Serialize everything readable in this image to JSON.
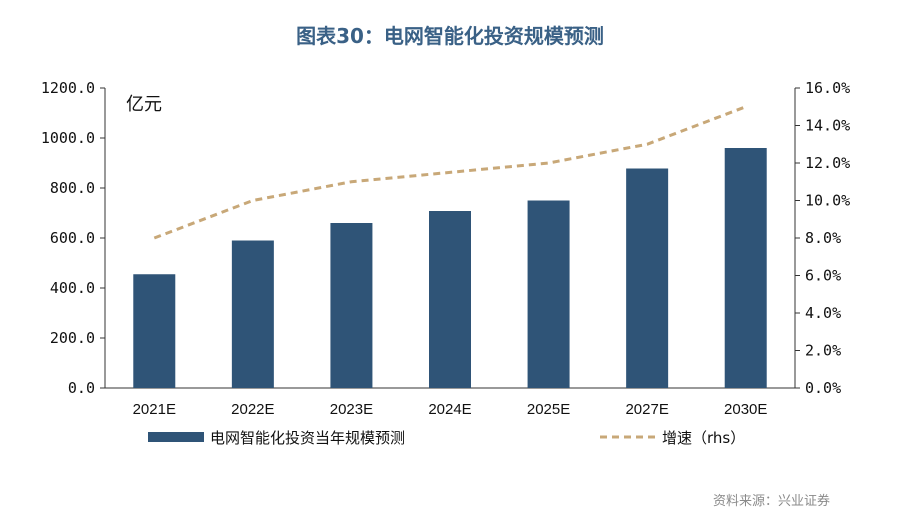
{
  "title": "图表30：电网智能化投资规模预测",
  "unit_label": "亿元",
  "source": "资料来源：兴业证券",
  "colors": {
    "bar": "#2f5477",
    "line": "#c8a878",
    "title": "#3a6186"
  },
  "chart_data": {
    "type": "bar",
    "categories": [
      "2021E",
      "2022E",
      "2023E",
      "2024E",
      "2025E",
      "2027E",
      "2030E"
    ],
    "series": [
      {
        "name": "电网智能化投资当年规模预测",
        "type": "bar",
        "axis": "left",
        "values": [
          455,
          590,
          660,
          708,
          750,
          878,
          960
        ]
      },
      {
        "name": "增速（rhs）",
        "type": "line",
        "axis": "right",
        "style": "dashed",
        "values": [
          8.0,
          10.0,
          11.0,
          11.5,
          12.0,
          13.0,
          15.0
        ]
      }
    ],
    "ylim": [
      0,
      1200
    ],
    "y2lim": [
      0,
      16
    ],
    "yticks": [
      "0.0",
      "200.0",
      "400.0",
      "600.0",
      "800.0",
      "1000.0",
      "1200.0"
    ],
    "y2ticks": [
      "0.0%",
      "2.0%",
      "4.0%",
      "6.0%",
      "8.0%",
      "10.0%",
      "12.0%",
      "14.0%",
      "16.0%"
    ],
    "legend_position": "bottom"
  }
}
